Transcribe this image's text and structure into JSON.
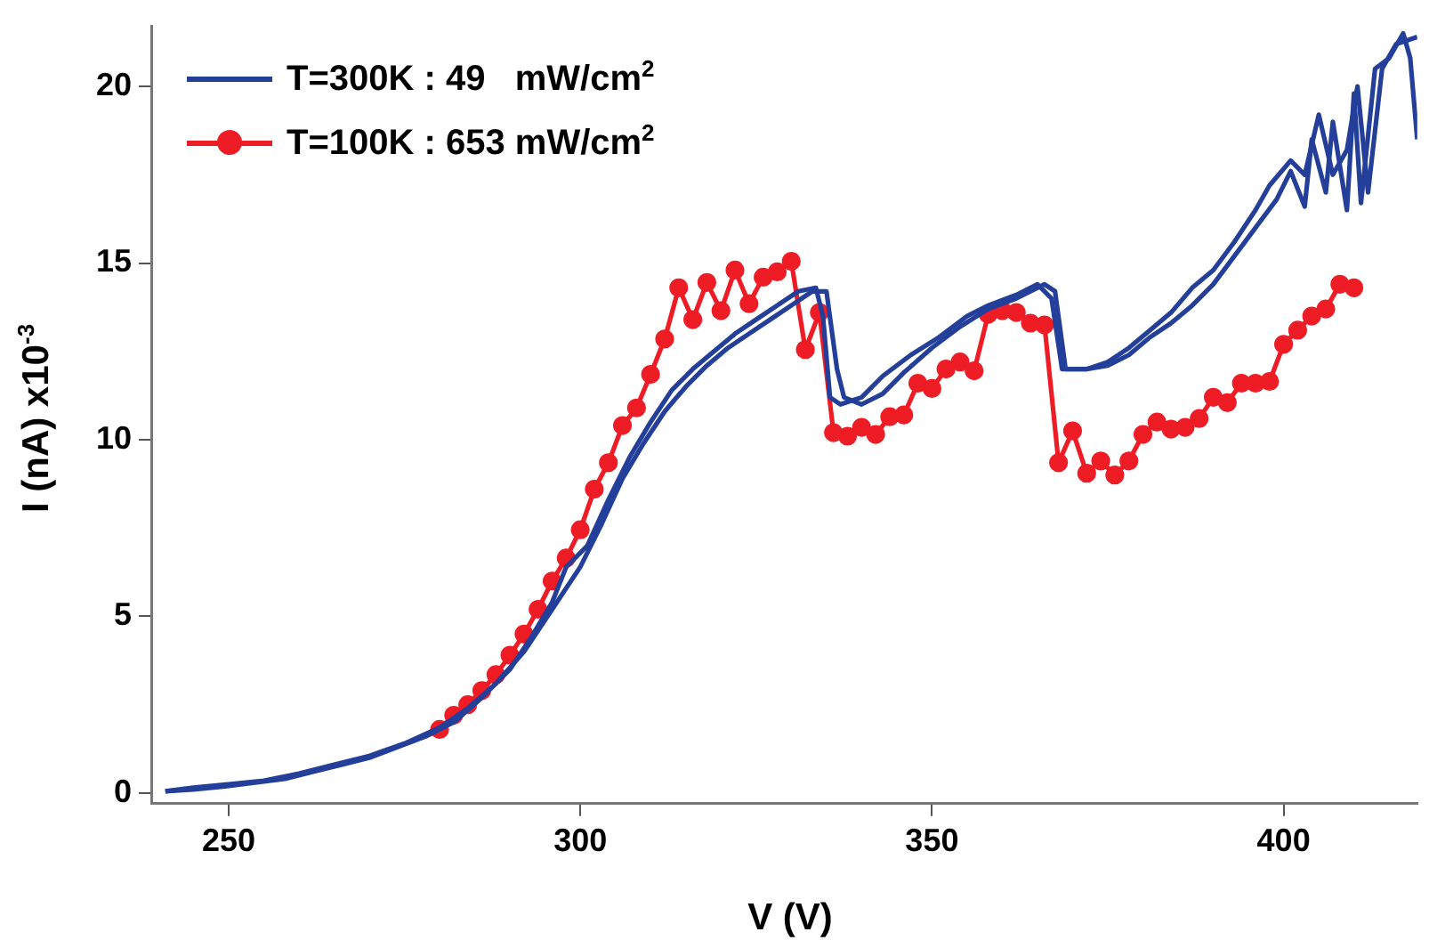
{
  "chart_data": {
    "type": "line",
    "xlabel": "V (V)",
    "ylabel": "I (nA) x10$^{-3}$",
    "xlim": [
      239,
      419
    ],
    "ylim": [
      -0.3,
      21.7
    ],
    "xticks": [
      250,
      300,
      350,
      400
    ],
    "yticks": [
      0,
      5,
      10,
      15,
      20
    ],
    "grid": false,
    "legend": "top left",
    "series": [
      {
        "name": "T=300K : 49   mW/cm$^{2}$",
        "color": "#233f9a",
        "marker": "none",
        "x": [
          241,
          245,
          250,
          255,
          260,
          265,
          270,
          275,
          280,
          284,
          288,
          292,
          296,
          300,
          303,
          306,
          309,
          312,
          315,
          318,
          321,
          324,
          327,
          330,
          333,
          335,
          336.5,
          337.5,
          340,
          343,
          346,
          350,
          354,
          358,
          362,
          366,
          367.5,
          369,
          372,
          375,
          378,
          381,
          384,
          387,
          390,
          393,
          396,
          399,
          401,
          403,
          404,
          406,
          407,
          409,
          410,
          411,
          413,
          415,
          417,
          418,
          419
        ],
        "values": [
          0.05,
          0.15,
          0.25,
          0.35,
          0.55,
          0.8,
          1.05,
          1.4,
          1.85,
          2.4,
          3.1,
          4.0,
          5.2,
          6.4,
          7.6,
          8.9,
          9.9,
          10.8,
          11.5,
          12.1,
          12.6,
          13.0,
          13.4,
          13.8,
          14.2,
          14.2,
          12.0,
          11.2,
          11.0,
          11.3,
          11.9,
          12.6,
          13.2,
          13.7,
          14.0,
          14.4,
          14.2,
          12.0,
          12.0,
          12.1,
          12.4,
          12.9,
          13.3,
          13.8,
          14.4,
          15.2,
          16.0,
          16.8,
          17.6,
          16.6,
          18.5,
          17.0,
          19.0,
          16.5,
          19.8,
          16.7,
          20.5,
          20.8,
          21.5,
          20.8,
          18.5
        ]
      },
      {
        "color": "#233f9a",
        "marker": "none",
        "x": [
          241,
          245,
          250,
          254,
          258,
          262,
          266,
          270,
          274,
          278,
          282,
          286,
          290,
          293,
          296,
          298,
          301,
          304,
          307,
          310,
          313,
          316,
          319,
          322,
          325,
          328,
          331,
          333.5,
          334.5,
          335.5,
          337,
          340,
          343,
          347,
          351,
          355,
          358,
          362,
          365,
          367,
          368.5,
          372,
          375,
          378,
          381,
          384,
          387,
          390,
          393,
          396,
          398,
          401,
          403,
          405,
          407,
          409,
          410.5,
          412,
          414,
          416,
          419
        ],
        "values": [
          0.05,
          0.1,
          0.2,
          0.3,
          0.4,
          0.6,
          0.8,
          1.0,
          1.3,
          1.6,
          2.0,
          2.7,
          3.5,
          4.4,
          5.4,
          6.4,
          7.0,
          8.3,
          9.5,
          10.5,
          11.4,
          12.0,
          12.5,
          13.0,
          13.4,
          13.8,
          14.2,
          14.3,
          13.5,
          11.2,
          11.0,
          11.2,
          11.8,
          12.4,
          12.9,
          13.5,
          13.8,
          14.1,
          14.4,
          14.0,
          12.0,
          12.0,
          12.2,
          12.6,
          13.1,
          13.6,
          14.3,
          14.8,
          15.6,
          16.5,
          17.2,
          17.9,
          17.5,
          19.2,
          17.5,
          18.2,
          20.0,
          17.0,
          20.5,
          21.2,
          21.4
        ]
      },
      {
        "name": "T=100K : 653 mW/cm$^{2}$",
        "color": "#ee1c25",
        "marker": "circle",
        "x": [
          280,
          282,
          284,
          286,
          288,
          290,
          292,
          294,
          296,
          298,
          300,
          302,
          304,
          306,
          308,
          310,
          312,
          314,
          316,
          318,
          320,
          322,
          324,
          326,
          328,
          330,
          332,
          334,
          336,
          338,
          340,
          342,
          344,
          346,
          348,
          350,
          352,
          354,
          356,
          358,
          360,
          362,
          364,
          366,
          368,
          370,
          372,
          374,
          376,
          378,
          380,
          382,
          384,
          386,
          388,
          390,
          392,
          394,
          396,
          398,
          400,
          402,
          404,
          406,
          408,
          410
        ],
        "values": [
          1.8,
          2.2,
          2.5,
          2.9,
          3.35,
          3.9,
          4.5,
          5.2,
          6.0,
          6.65,
          7.45,
          8.6,
          9.35,
          10.4,
          10.9,
          11.85,
          12.85,
          14.3,
          13.4,
          14.45,
          13.65,
          14.8,
          13.85,
          14.6,
          14.75,
          15.05,
          12.55,
          13.6,
          10.2,
          10.1,
          10.35,
          10.15,
          10.65,
          10.7,
          11.6,
          11.45,
          12.0,
          12.2,
          11.95,
          13.55,
          13.65,
          13.6,
          13.3,
          13.25,
          9.35,
          10.25,
          9.05,
          9.4,
          9.0,
          9.4,
          10.15,
          10.5,
          10.3,
          10.35,
          10.6,
          11.2,
          11.05,
          11.6,
          11.6,
          11.65,
          12.7,
          13.1,
          13.5,
          13.7,
          14.4,
          14.3
        ]
      }
    ]
  }
}
